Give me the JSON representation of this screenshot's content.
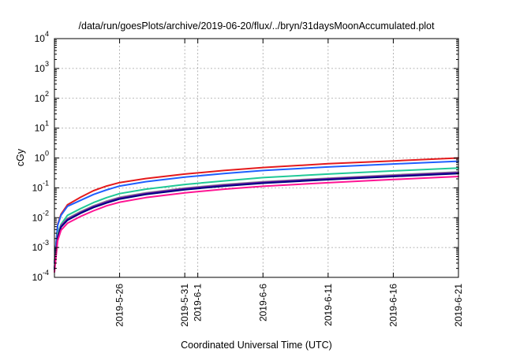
{
  "chart_data": {
    "type": "line",
    "title": "/data/run/goesPlots/archive/2019-06-20/flux/../bryn/31daysMoonAccumulated.plot",
    "xlabel": "Coordinated Universal Time (UTC)",
    "ylabel": "cGy",
    "yscale": "log",
    "ylim": [
      0.0001,
      10000
    ],
    "xlim": [
      "2019-05-21",
      "2019-06-21"
    ],
    "y_tick_labels": [
      {
        "base": "10",
        "exp": "-4",
        "value": 0.0001
      },
      {
        "base": "10",
        "exp": "-3",
        "value": 0.001
      },
      {
        "base": "10",
        "exp": "-2",
        "value": 0.01
      },
      {
        "base": "10",
        "exp": "-1",
        "value": 0.1
      },
      {
        "base": "10",
        "exp": "0",
        "value": 1
      },
      {
        "base": "10",
        "exp": "1",
        "value": 10
      },
      {
        "base": "10",
        "exp": "2",
        "value": 100
      },
      {
        "base": "10",
        "exp": "3",
        "value": 1000
      },
      {
        "base": "10",
        "exp": "4",
        "value": 10000
      }
    ],
    "x_tick_labels": [
      {
        "label": "2019-5-26",
        "date": "2019-05-26"
      },
      {
        "label": "2019-5-31",
        "date": "2019-05-31"
      },
      {
        "label": "2019-6-1",
        "date": "2019-06-01"
      },
      {
        "label": "2019-6-6",
        "date": "2019-06-06"
      },
      {
        "label": "2019-6-11",
        "date": "2019-06-11"
      },
      {
        "label": "2019-6-16",
        "date": "2019-06-16"
      },
      {
        "label": "2019-6-21",
        "date": "2019-06-21"
      }
    ],
    "grid": true,
    "legend": "none",
    "x": [
      "2019-05-21",
      "2019-05-21T06:00",
      "2019-05-21T12:00",
      "2019-05-22",
      "2019-05-23",
      "2019-05-24",
      "2019-05-25",
      "2019-05-26",
      "2019-05-28",
      "2019-05-31",
      "2019-06-03",
      "2019-06-06",
      "2019-06-11",
      "2019-06-16",
      "2019-06-21"
    ],
    "series": [
      {
        "color": "#e41a1c",
        "values": [
          0.0003,
          0.006,
          0.013,
          0.027,
          0.048,
          0.08,
          0.115,
          0.15,
          0.205,
          0.29,
          0.38,
          0.48,
          0.64,
          0.8,
          1.0
        ]
      },
      {
        "color": "#1f5fff",
        "values": [
          0.0003,
          0.0055,
          0.012,
          0.024,
          0.038,
          0.06,
          0.085,
          0.115,
          0.16,
          0.23,
          0.3,
          0.38,
          0.5,
          0.63,
          0.78
        ]
      },
      {
        "color": "#20c997",
        "values": [
          0.0002,
          0.003,
          0.006,
          0.012,
          0.02,
          0.032,
          0.047,
          0.064,
          0.09,
          0.13,
          0.17,
          0.22,
          0.29,
          0.37,
          0.46
        ]
      },
      {
        "color": "#8a8a8a",
        "values": [
          0.0002,
          0.0025,
          0.0055,
          0.0095,
          0.016,
          0.025,
          0.036,
          0.048,
          0.068,
          0.098,
          0.13,
          0.16,
          0.21,
          0.27,
          0.34
        ]
      },
      {
        "color": "#6a0dad",
        "values": [
          0.0002,
          0.0023,
          0.0052,
          0.0088,
          0.0148,
          0.0235,
          0.0335,
          0.045,
          0.064,
          0.093,
          0.122,
          0.152,
          0.2,
          0.255,
          0.32
        ]
      },
      {
        "color": "#000080",
        "values": [
          0.00018,
          0.0021,
          0.0048,
          0.0082,
          0.014,
          0.022,
          0.031,
          0.042,
          0.06,
          0.087,
          0.114,
          0.143,
          0.188,
          0.24,
          0.3
        ]
      },
      {
        "color": "#ff1493",
        "values": [
          0.00015,
          0.0017,
          0.0038,
          0.0065,
          0.011,
          0.017,
          0.025,
          0.033,
          0.047,
          0.068,
          0.09,
          0.113,
          0.148,
          0.19,
          0.24
        ]
      }
    ]
  }
}
